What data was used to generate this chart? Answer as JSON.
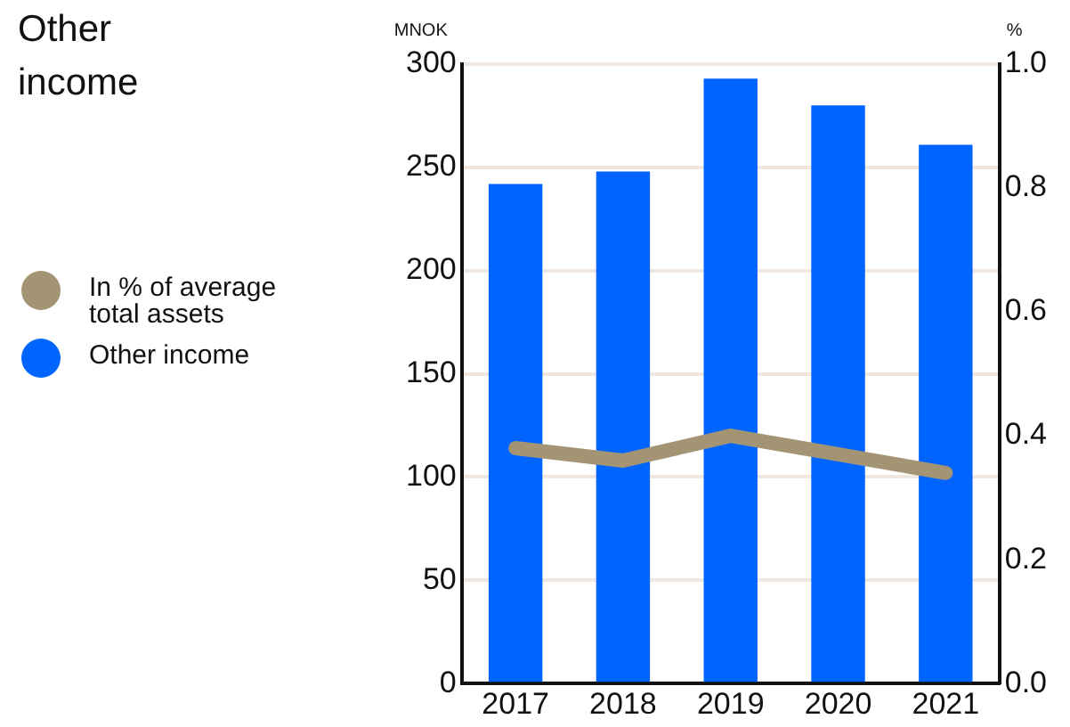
{
  "chart_data": {
    "type": "bar",
    "title": "Other income",
    "ylabel": "MNOK",
    "y2label": "%",
    "categories": [
      "2017",
      "2018",
      "2019",
      "2020",
      "2021"
    ],
    "series": [
      {
        "name": "In % of average total assets",
        "type": "line",
        "axis": "y2",
        "color": "#a39474",
        "values": [
          0.38,
          0.36,
          0.4,
          0.37,
          0.34
        ]
      },
      {
        "name": "Other income",
        "color": "#0064ff",
        "values": [
          242,
          248,
          293,
          280,
          261
        ]
      }
    ],
    "ylim": [
      0,
      300
    ],
    "yticks": [
      0,
      50,
      100,
      150,
      200,
      250,
      300
    ],
    "y2lim": [
      0,
      1
    ],
    "y2ticks": [
      {
        "value": 0,
        "label": "0.0"
      },
      {
        "value": 0.2,
        "label": "0.2"
      },
      {
        "value": 0.4,
        "label": "0.4"
      },
      {
        "value": 0.6,
        "label": "0.6"
      },
      {
        "value": 0.8,
        "label": "0.8"
      },
      {
        "value": 1,
        "label": "1.0"
      }
    ],
    "grid": "y",
    "legend": "left",
    "marker": "none"
  }
}
